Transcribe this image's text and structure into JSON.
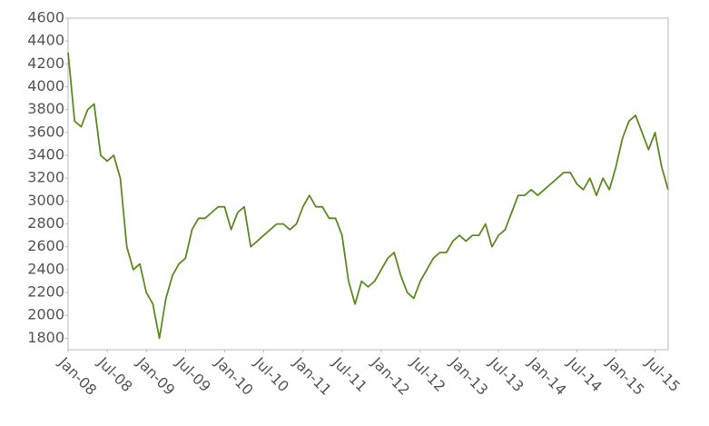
{
  "chart_data": {
    "type": "line",
    "x": [
      "2008-01",
      "2008-02",
      "2008-03",
      "2008-04",
      "2008-05",
      "2008-06",
      "2008-07",
      "2008-08",
      "2008-09",
      "2008-10",
      "2008-11",
      "2008-12",
      "2009-01",
      "2009-02",
      "2009-03",
      "2009-04",
      "2009-05",
      "2009-06",
      "2009-07",
      "2009-08",
      "2009-09",
      "2009-10",
      "2009-11",
      "2009-12",
      "2010-01",
      "2010-02",
      "2010-03",
      "2010-04",
      "2010-05",
      "2010-06",
      "2010-07",
      "2010-08",
      "2010-09",
      "2010-10",
      "2010-11",
      "2010-12",
      "2011-01",
      "2011-02",
      "2011-03",
      "2011-04",
      "2011-05",
      "2011-06",
      "2011-07",
      "2011-08",
      "2011-09",
      "2011-10",
      "2011-11",
      "2011-12",
      "2012-01",
      "2012-02",
      "2012-03",
      "2012-04",
      "2012-05",
      "2012-06",
      "2012-07",
      "2012-08",
      "2012-09",
      "2012-10",
      "2012-11",
      "2012-12",
      "2013-01",
      "2013-02",
      "2013-03",
      "2013-04",
      "2013-05",
      "2013-06",
      "2013-07",
      "2013-08",
      "2013-09",
      "2013-10",
      "2013-11",
      "2013-12",
      "2014-01",
      "2014-02",
      "2014-03",
      "2014-04",
      "2014-05",
      "2014-06",
      "2014-07",
      "2014-08",
      "2014-09",
      "2014-10",
      "2014-11",
      "2014-12",
      "2015-01",
      "2015-02",
      "2015-03",
      "2015-04",
      "2015-05",
      "2015-06",
      "2015-07",
      "2015-08",
      "2015-09"
    ],
    "series": [
      {
        "color": "#5b8c23",
        "values": [
          4300,
          3700,
          3650,
          3800,
          3850,
          3400,
          3350,
          3400,
          3200,
          2600,
          2400,
          2450,
          2200,
          2100,
          1800,
          2150,
          2350,
          2450,
          2500,
          2750,
          2850,
          2850,
          2900,
          2950,
          2950,
          2750,
          2900,
          2950,
          2600,
          2650,
          2700,
          2750,
          2800,
          2800,
          2750,
          2800,
          2950,
          3050,
          2950,
          2950,
          2850,
          2850,
          2700,
          2300,
          2100,
          2300,
          2250,
          2300,
          2400,
          2500,
          2550,
          2350,
          2200,
          2150,
          2300,
          2400,
          2500,
          2550,
          2550,
          2650,
          2700,
          2650,
          2700,
          2700,
          2800,
          2600,
          2700,
          2750,
          2900,
          3050,
          3050,
          3100,
          3050,
          3100,
          3150,
          3200,
          3250,
          3250,
          3150,
          3100,
          3200,
          3050,
          3200,
          3100,
          3300,
          3550,
          3700,
          3750,
          3600,
          3450,
          3600,
          3300,
          3100
        ]
      }
    ],
    "xlim": [
      "2008-01",
      "2015-09"
    ],
    "xticks": [
      {
        "value": "2008-01",
        "label": "Jan-08"
      },
      {
        "value": "2008-07",
        "label": "Jul-08"
      },
      {
        "value": "2009-01",
        "label": "Jan-09"
      },
      {
        "value": "2009-07",
        "label": "Jul-09"
      },
      {
        "value": "2010-01",
        "label": "Jan-10"
      },
      {
        "value": "2010-07",
        "label": "Jul-10"
      },
      {
        "value": "2011-01",
        "label": "Jan-11"
      },
      {
        "value": "2011-07",
        "label": "Jul-11"
      },
      {
        "value": "2012-01",
        "label": "Jan-12"
      },
      {
        "value": "2012-07",
        "label": "Jul-12"
      },
      {
        "value": "2013-01",
        "label": "Jan-13"
      },
      {
        "value": "2013-07",
        "label": "Jul-13"
      },
      {
        "value": "2014-01",
        "label": "Jan-14"
      },
      {
        "value": "2014-07",
        "label": "Jul-14"
      },
      {
        "value": "2015-01",
        "label": "Jan-15"
      },
      {
        "value": "2015-07",
        "label": "Jul-15"
      }
    ],
    "ylim": [
      1700,
      4600
    ],
    "yticks": [
      1800,
      2000,
      2200,
      2400,
      2600,
      2800,
      3000,
      3200,
      3400,
      3600,
      3800,
      4000,
      4200,
      4400,
      4600
    ],
    "grid": false
  }
}
